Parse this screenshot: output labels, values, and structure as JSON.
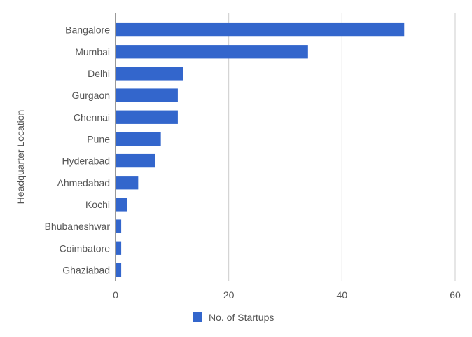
{
  "chart_data": {
    "type": "bar",
    "orientation": "horizontal",
    "categories": [
      "Bangalore",
      "Mumbai",
      "Delhi",
      "Gurgaon",
      "Chennai",
      "Pune",
      "Hyderabad",
      "Ahmedabad",
      "Kochi",
      "Bhubaneshwar",
      "Coimbatore",
      "Ghaziabad"
    ],
    "series": [
      {
        "name": "No. of Startups",
        "values": [
          51,
          34,
          12,
          11,
          11,
          8,
          7,
          4,
          2,
          1,
          1,
          1
        ]
      }
    ],
    "xlim": [
      0,
      60
    ],
    "xticks": [
      0,
      20,
      40,
      60
    ],
    "xlabel": "",
    "ylabel": "Headquarter Location",
    "title": "",
    "grid": true,
    "legend_position": "bottom",
    "colors": {
      "bar": "#3366cc",
      "grid": "#cccccc",
      "axis": "#333333",
      "text": "#555555"
    }
  }
}
